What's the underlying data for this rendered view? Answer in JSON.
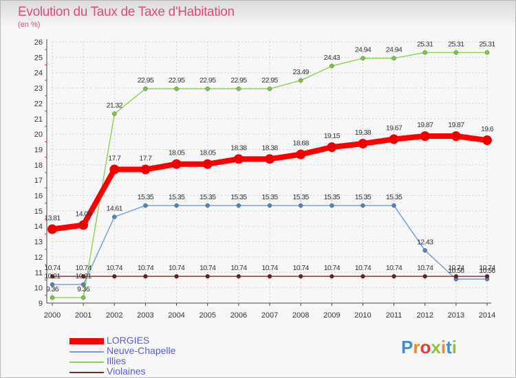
{
  "header": {
    "title": "Evolution du Taux de Taxe d'Habitation",
    "unit": "(en %)"
  },
  "chart_data": {
    "type": "line",
    "categories": [
      "2000",
      "2001",
      "2002",
      "2003",
      "2004",
      "2005",
      "2006",
      "2007",
      "2008",
      "2009",
      "2010",
      "2011",
      "2012",
      "2013",
      "2014"
    ],
    "ylim": [
      9,
      26
    ],
    "yticks": [
      9,
      10,
      11,
      12,
      13,
      14,
      15,
      16,
      17,
      18,
      19,
      20,
      21,
      22,
      23,
      24,
      25,
      26
    ],
    "grid": true,
    "legend_position": "bottom-left",
    "series": [
      {
        "name": "Illies",
        "color": "#8fd14f",
        "marker": "#7ac943",
        "values": [
          9.36,
          9.36,
          21.32,
          22.95,
          22.95,
          22.95,
          22.95,
          22.95,
          23.49,
          24.43,
          24.94,
          24.94,
          25.31,
          25.31,
          25.31
        ],
        "labels": [
          "9.36",
          "9.36",
          "21.32",
          "22.95",
          "22.95",
          "22.95",
          "22.95",
          "22.95",
          "23.49",
          "24.43",
          "24.94",
          "24.94",
          "25.31",
          "25.31",
          "25.31"
        ]
      },
      {
        "name": "Neuve-Chapelle",
        "color": "#6f9fd0",
        "marker": "#4f86c0",
        "values": [
          10.21,
          10.21,
          14.61,
          15.35,
          15.35,
          15.35,
          15.35,
          15.35,
          15.35,
          15.35,
          15.35,
          15.35,
          12.43,
          10.56,
          10.56
        ],
        "labels": [
          "10.21",
          "10.21",
          "14.61",
          "15.35",
          "15.35",
          "15.35",
          "15.35",
          "15.35",
          "15.35",
          "15.35",
          "15.35",
          "15.35",
          "12.43",
          "10.56",
          "10.56"
        ]
      },
      {
        "name": "Violaines",
        "color": "#7a2a2a",
        "marker": "#6b1e1e",
        "values": [
          10.74,
          10.74,
          10.74,
          10.74,
          10.74,
          10.74,
          10.74,
          10.74,
          10.74,
          10.74,
          10.74,
          10.74,
          10.74,
          10.74,
          10.74
        ],
        "labels": [
          "10.74",
          "10.74",
          "10.74",
          "10.74",
          "10.74",
          "10.74",
          "10.74",
          "10.74",
          "10.74",
          "10.74",
          "10.74",
          "10.74",
          "10.74",
          "10.74",
          "10.74"
        ]
      },
      {
        "name": "LORGIES",
        "color": "#ff0000",
        "marker": "#ee0000",
        "values": [
          13.81,
          14.08,
          17.7,
          17.7,
          18.05,
          18.05,
          18.38,
          18.38,
          18.68,
          19.15,
          19.38,
          19.67,
          19.87,
          19.87,
          19.6
        ],
        "labels": [
          "13.81",
          "14.08",
          "17.7",
          "17.7",
          "18.05",
          "18.05",
          "18.38",
          "18.38",
          "18.68",
          "19.15",
          "19.38",
          "19.67",
          "19.87",
          "19.87",
          "19.6"
        ]
      }
    ]
  },
  "legend": {
    "items": [
      {
        "label": "LORGIES",
        "color": "#ff0000"
      },
      {
        "label": "Neuve-Chapelle",
        "color": "#6f9fd0"
      },
      {
        "label": "Illies",
        "color": "#8fd14f"
      },
      {
        "label": "Violaines",
        "color": "#7a2a2a"
      }
    ]
  },
  "logo": {
    "letters": [
      "P",
      "r",
      "o",
      "x",
      "i",
      "t",
      "i"
    ],
    "colors": [
      "#3a8fd9",
      "#f08a1c",
      "#e53b3b",
      "#8bc53f",
      "#f08a1c",
      "#3a8fd9",
      "#8bc53f"
    ]
  }
}
